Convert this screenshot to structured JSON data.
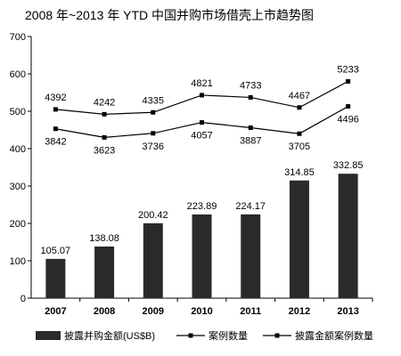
{
  "chart_data": {
    "type": "bar",
    "title": "2008 年~2013 年 YTD 中国并购市场借壳上市趋势图",
    "categories": [
      "2007",
      "2008",
      "2009",
      "2010",
      "2011",
      "2012",
      "2013"
    ],
    "ylim": [
      0,
      700
    ],
    "yticks": [
      "0",
      "100",
      "200",
      "300",
      "400",
      "500",
      "600",
      "700"
    ],
    "grid": false,
    "legend_position": "bottom",
    "series": [
      {
        "name": "披露并购金额(US$B)",
        "type": "bar",
        "color": "#2a2a2a",
        "values": [
          105.07,
          138.08,
          200.42,
          223.89,
          224.17,
          314.85,
          332.85
        ],
        "labels": [
          "105.07",
          "138.08",
          "200.42",
          "223.89",
          "224.17",
          "314.85",
          "332.85"
        ]
      },
      {
        "name": "案例数量",
        "type": "line",
        "marker": "square",
        "values": [
          505,
          492,
          497,
          543,
          537,
          510,
          580
        ],
        "labels": [
          "4392",
          "4242",
          "4335",
          "4821",
          "4733",
          "4467",
          "5233"
        ]
      },
      {
        "name": "披露金额案例数量",
        "type": "line",
        "marker": "square",
        "values": [
          453,
          430,
          441,
          470,
          456,
          440,
          513
        ],
        "labels": [
          "3842",
          "3623",
          "3736",
          "4057",
          "3887",
          "3705",
          "4496"
        ]
      }
    ]
  }
}
